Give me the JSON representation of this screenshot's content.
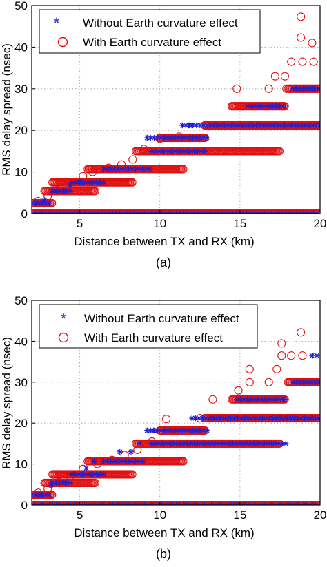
{
  "colors": {
    "without": "#2020d0",
    "with": "#e01010",
    "axis": "#000000",
    "grid": "#9a9a9a"
  },
  "chart_data": [
    {
      "type": "scatter",
      "caption": "(a)",
      "xlabel": "Distance between TX and RX (km)",
      "ylabel": "RMS delay spread (nsec)",
      "xlim": [
        2,
        20
      ],
      "ylim": [
        0,
        50
      ],
      "xticks": [
        5,
        10,
        15,
        20
      ],
      "yticks": [
        0,
        10,
        20,
        30,
        40,
        50
      ],
      "grid": true,
      "legend_position": "top-left",
      "levels": [
        0,
        2.5,
        5.4,
        7.5,
        10.7,
        15,
        18.2,
        21.2,
        25.8,
        30,
        36.5
      ],
      "series": [
        {
          "name": "Without Earth curvature effect",
          "marker": "asterisk",
          "bands": [
            [
              0,
              2,
              20
            ],
            [
              2.5,
              2,
              3.3
            ],
            [
              5.4,
              3.3,
              4.5
            ],
            [
              7.5,
              4.5,
              6.5
            ],
            [
              10.7,
              6.5,
              9.5
            ],
            [
              15,
              9.5,
              13.0
            ],
            [
              18.2,
              9.2,
              13.0
            ],
            [
              21.2,
              11.4,
              20
            ],
            [
              25.8,
              15.5,
              17.8
            ],
            [
              30,
              18.3,
              20
            ]
          ],
          "points": [
            [
              2.3,
              2.5
            ],
            [
              2.8,
              3.2
            ],
            [
              3.4,
              5.4
            ],
            [
              4.0,
              5.4
            ],
            [
              4.4,
              6.8
            ],
            [
              5.0,
              7.6
            ],
            [
              9.2,
              18.2
            ],
            [
              11.4,
              21.2
            ],
            [
              11.8,
              21.2
            ],
            [
              12.0,
              21.2
            ],
            [
              18.5,
              30.0
            ],
            [
              19.0,
              30.0
            ],
            [
              19.5,
              30.0
            ]
          ]
        },
        {
          "name": "With Earth curvature effect",
          "marker": "circle",
          "bands": [
            [
              0,
              2,
              20
            ],
            [
              2.5,
              2,
              3.3
            ],
            [
              5.4,
              2.8,
              6.0
            ],
            [
              7.5,
              3.3,
              8.3
            ],
            [
              10.7,
              5.5,
              11.5
            ],
            [
              15,
              8.5,
              17.5
            ],
            [
              18.2,
              10.0,
              12.8
            ],
            [
              21.2,
              12.8,
              20
            ],
            [
              25.8,
              14.5,
              17.8
            ],
            [
              30,
              18.0,
              20
            ]
          ],
          "points": [
            [
              2.4,
              3.0
            ],
            [
              3.0,
              4.2
            ],
            [
              3.6,
              5.6
            ],
            [
              4.3,
              7.0
            ],
            [
              5.2,
              9.0
            ],
            [
              5.8,
              10.0
            ],
            [
              6.8,
              11.0
            ],
            [
              7.6,
              11.8
            ],
            [
              8.3,
              13.0
            ],
            [
              9.0,
              15.5
            ],
            [
              10.0,
              18.0
            ],
            [
              11.2,
              18.5
            ],
            [
              13.0,
              21.2
            ],
            [
              14.5,
              25.8
            ],
            [
              15.2,
              25.8
            ],
            [
              16.5,
              25.8
            ],
            [
              17.6,
              25.8
            ],
            [
              14.8,
              30.0
            ],
            [
              16.8,
              30.0
            ],
            [
              17.9,
              30.0
            ],
            [
              17.2,
              33.0
            ],
            [
              17.8,
              33.0
            ],
            [
              18.2,
              36.5
            ],
            [
              18.9,
              36.5
            ],
            [
              19.6,
              36.5
            ],
            [
              19.5,
              41.0
            ],
            [
              18.8,
              42.3
            ],
            [
              18.8,
              47.3
            ]
          ]
        }
      ]
    },
    {
      "type": "scatter",
      "caption": "(b)",
      "xlabel": "Distance between TX and RX (km)",
      "ylabel": "RMS delay spread (nsec)",
      "xlim": [
        2,
        20
      ],
      "ylim": [
        0,
        50
      ],
      "xticks": [
        5,
        10,
        15,
        20
      ],
      "yticks": [
        0,
        10,
        20,
        30,
        40,
        50
      ],
      "grid": true,
      "legend_position": "top-left",
      "levels": [
        0,
        2.5,
        5.4,
        7.5,
        10.7,
        15,
        18.2,
        21.2,
        25.8,
        30,
        36.5
      ],
      "series": [
        {
          "name": "Without Earth curvature effect",
          "marker": "asterisk",
          "bands": [
            [
              0,
              2,
              20
            ],
            [
              2.5,
              2,
              3.3
            ],
            [
              5.4,
              3.3,
              4.5
            ],
            [
              7.5,
              4.5,
              6.5
            ],
            [
              10.7,
              6.5,
              9.0
            ],
            [
              15,
              9.5,
              18.0
            ],
            [
              18.2,
              9.2,
              13.0
            ],
            [
              21.2,
              12.0,
              20
            ],
            [
              25.8,
              14.8,
              17.8
            ],
            [
              30,
              18.3,
              20
            ]
          ],
          "points": [
            [
              2.5,
              2.5
            ],
            [
              3.2,
              4.8
            ],
            [
              4.0,
              5.6
            ],
            [
              4.6,
              7.6
            ],
            [
              5.4,
              9.0
            ],
            [
              5.9,
              10.7
            ],
            [
              7.5,
              13.0
            ],
            [
              8.2,
              13.0
            ],
            [
              8.7,
              15.0
            ],
            [
              9.2,
              18.2
            ],
            [
              9.6,
              18.2
            ],
            [
              12.2,
              21.2
            ],
            [
              14.8,
              25.8
            ],
            [
              17.8,
              25.8
            ],
            [
              19.5,
              36.5
            ],
            [
              19.8,
              36.5
            ]
          ]
        },
        {
          "name": "With Earth curvature effect",
          "marker": "circle",
          "bands": [
            [
              0,
              2,
              20
            ],
            [
              2.5,
              2,
              3.3
            ],
            [
              5.4,
              2.8,
              6.0
            ],
            [
              7.5,
              3.3,
              8.3
            ],
            [
              10.7,
              5.5,
              11.5
            ],
            [
              15,
              8.5,
              17.5
            ],
            [
              18.2,
              10.0,
              12.8
            ],
            [
              21.2,
              12.8,
              20
            ],
            [
              25.8,
              14.5,
              17.8
            ],
            [
              30,
              18.0,
              20
            ]
          ],
          "points": [
            [
              2.4,
              3.0
            ],
            [
              3.0,
              4.0
            ],
            [
              3.7,
              5.6
            ],
            [
              4.4,
              7.0
            ],
            [
              5.2,
              8.8
            ],
            [
              6.1,
              10.0
            ],
            [
              7.0,
              11.0
            ],
            [
              7.8,
              12.2
            ],
            [
              8.6,
              13.5
            ],
            [
              9.5,
              15.5
            ],
            [
              10.4,
              18.0
            ],
            [
              10.4,
              21.0
            ],
            [
              12.5,
              21.2
            ],
            [
              13.3,
              25.8
            ],
            [
              15.5,
              25.8
            ],
            [
              16.7,
              25.8
            ],
            [
              14.9,
              28.0
            ],
            [
              15.6,
              30.0
            ],
            [
              16.8,
              30.0
            ],
            [
              15.6,
              33.2
            ],
            [
              17.3,
              33.2
            ],
            [
              17.6,
              36.5
            ],
            [
              18.2,
              36.5
            ],
            [
              18.9,
              36.5
            ],
            [
              17.6,
              39.5
            ],
            [
              18.8,
              42.2
            ]
          ]
        }
      ]
    }
  ]
}
